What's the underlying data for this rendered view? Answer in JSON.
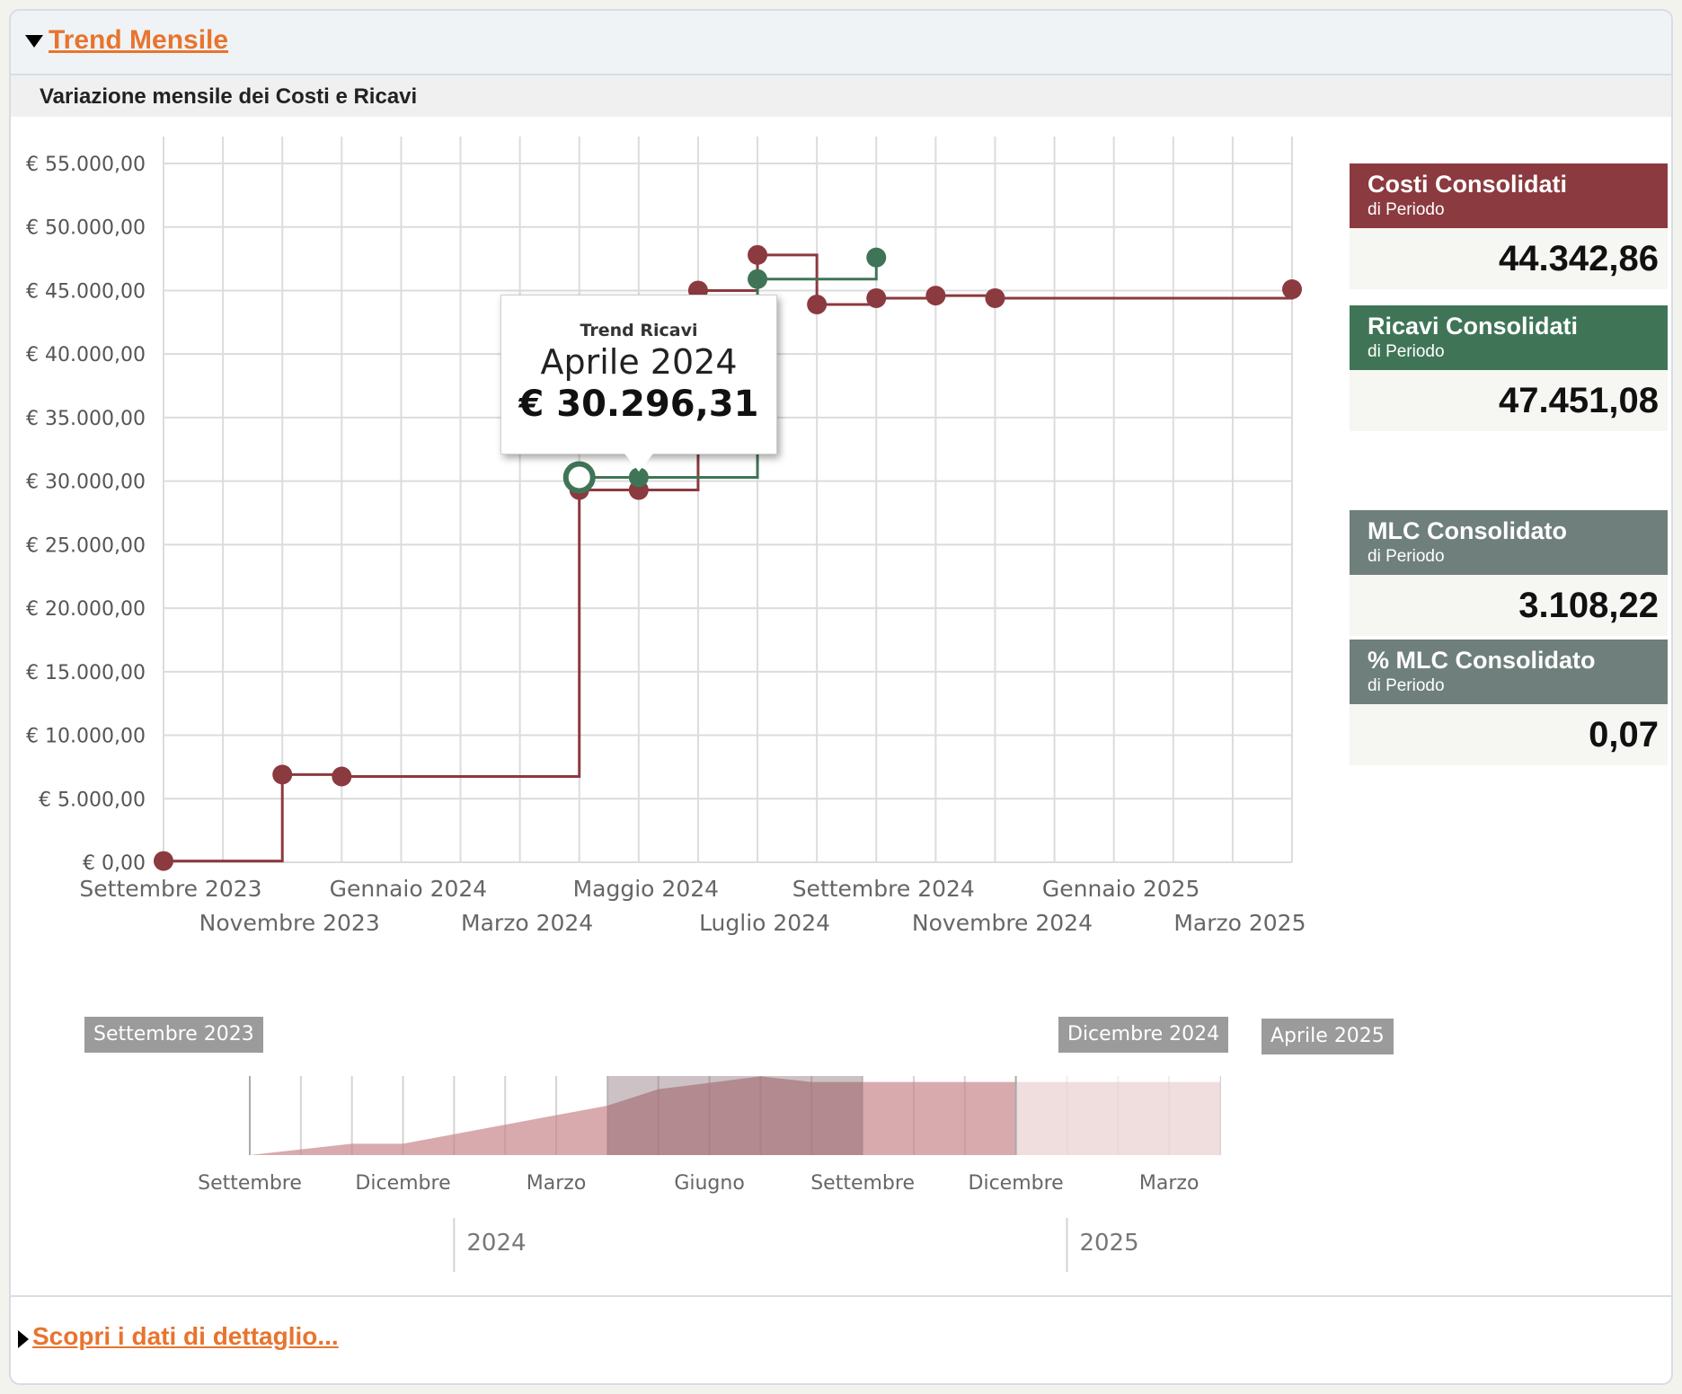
{
  "header": {
    "title": "Trend Mensile"
  },
  "subheader": {
    "title": "Variazione mensile dei Costi e Ricavi"
  },
  "chart_data": {
    "type": "line",
    "step": true,
    "y_ticks": [
      "€ 0,00",
      "€ 5.000,00",
      "€ 10.000,00",
      "€ 15.000,00",
      "€ 20.000,00",
      "€ 25.000,00",
      "€ 30.000,00",
      "€ 35.000,00",
      "€ 40.000,00",
      "€ 45.000,00",
      "€ 50.000,00",
      "€ 55.000,00"
    ],
    "ylim": [
      0,
      55000
    ],
    "x_range": [
      0,
      19
    ],
    "x_ticks": [
      {
        "x": 0,
        "label": "Settembre 2023",
        "row": 0
      },
      {
        "x": 2,
        "label": "Novembre 2023",
        "row": 1
      },
      {
        "x": 4,
        "label": "Gennaio 2024",
        "row": 0
      },
      {
        "x": 6,
        "label": "Marzo 2024",
        "row": 1
      },
      {
        "x": 8,
        "label": "Maggio 2024",
        "row": 0
      },
      {
        "x": 10,
        "label": "Luglio 2024",
        "row": 1
      },
      {
        "x": 12,
        "label": "Settembre 2024",
        "row": 0
      },
      {
        "x": 14,
        "label": "Novembre 2024",
        "row": 1
      },
      {
        "x": 16,
        "label": "Gennaio 2025",
        "row": 0
      },
      {
        "x": 18,
        "label": "Marzo 2025",
        "row": 1
      }
    ],
    "grid": true,
    "series": [
      {
        "color": "#8b3a3f",
        "points": [
          [
            0,
            100
          ],
          [
            2,
            6900
          ],
          [
            3,
            6750
          ],
          [
            7,
            29300
          ],
          [
            8,
            29300
          ],
          [
            9,
            45000
          ],
          [
            10,
            47800
          ],
          [
            11,
            43900
          ],
          [
            12,
            44400
          ],
          [
            13,
            44600
          ],
          [
            14,
            44400
          ],
          [
            19,
            45100
          ]
        ]
      },
      {
        "color": "#3f7556",
        "points": [
          [
            7,
            30296.31
          ],
          [
            8,
            30296.31
          ],
          [
            10,
            45900
          ],
          [
            12,
            47600
          ]
        ]
      }
    ],
    "tooltip": {
      "title": "Trend Ricavi",
      "month": "Aprile 2024",
      "value": "€ 30.296,31",
      "x": 7,
      "y": 30296.31
    },
    "navigator": {
      "ylim": [
        0,
        48000
      ],
      "area": [
        [
          0,
          0
        ],
        [
          2,
          6900
        ],
        [
          3,
          6900
        ],
        [
          7,
          30000
        ],
        [
          8,
          40000
        ],
        [
          10,
          47800
        ],
        [
          11,
          44400
        ],
        [
          14,
          44400
        ],
        [
          19,
          44400
        ]
      ],
      "selected": [
        7,
        12
      ],
      "month_labels": [
        "Settembre",
        "Dicembre",
        "Marzo",
        "Giugno",
        "Settembre",
        "Dicembre",
        "Marzo"
      ],
      "month_x": [
        0,
        3,
        6,
        9,
        12,
        15,
        18
      ],
      "year_labels": [
        "2024",
        "2025"
      ],
      "year_x": [
        4,
        16
      ],
      "flags": [
        "Settembre 2023",
        "Dicembre 2024",
        "Aprile 2025"
      ]
    }
  },
  "kpis": [
    {
      "name": "Costi Consolidati",
      "sub": "di Periodo",
      "value": "44.342,86",
      "color": "#8b3a3f"
    },
    {
      "name": "Ricavi Consolidati",
      "sub": "di Periodo",
      "value": "47.451,08",
      "color": "#3f7556"
    },
    {
      "name": "MLC Consolidato",
      "sub": "di Periodo",
      "value": "3.108,22",
      "color": "#6f7f7b"
    },
    {
      "name": "% MLC Consolidato",
      "sub": "di Periodo",
      "value": "0,07",
      "color": "#6f7f7b"
    }
  ],
  "footer": {
    "link": "Scopri i dati di dettaglio..."
  }
}
